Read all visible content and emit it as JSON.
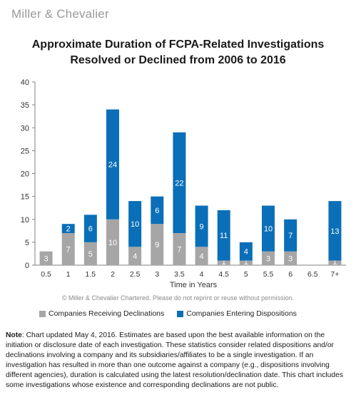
{
  "brand": "Miller & Chevalier",
  "title_line1": "Approximate Duration of FCPA-Related Investigations",
  "title_line2": "Resolved or Declined from 2006 to 2016",
  "copyright": "© Miller & Chevalier Chartered. Please do not reprint or reuse without permission.",
  "note_label": "Note",
  "note_text": ": Chart updated May 4, 2016. Estimates are based upon the best available information on the initiation or disclosure date of each investigation. These statistics consider related dispositions and/or declinations involving a company and its subsidiaries/affiliates to be a single investigation. If an investigation has resulted in more than one outcome against a company (e.g., dispositions involving different agencies), duration is calculated using the latest resolution/declination date. This chart includes some investigations whose existence and corresponding declinations are not public.",
  "colors": {
    "declinations": "#a6a6a6",
    "dispositions": "#0a6fb8"
  },
  "chart_data": {
    "type": "bar",
    "stacked": true,
    "title": "Approximate Duration of FCPA-Related Investigations Resolved or Declined from 2006 to 2016",
    "xlabel": "Time in Years",
    "ylabel": "",
    "ylim": [
      0,
      40
    ],
    "yticks": [
      0,
      5,
      10,
      15,
      20,
      25,
      30,
      35,
      40
    ],
    "grid": false,
    "legend": "bottom",
    "categories": [
      "0.5",
      "1",
      "1.5",
      "2",
      "2.5",
      "3",
      "3.5",
      "4",
      "4.5",
      "5",
      "5.5",
      "6",
      "6.5",
      "7+"
    ],
    "series": [
      {
        "name": "Companies Receiving Declinations",
        "values": [
          3,
          7,
          5,
          10,
          4,
          9,
          7,
          4,
          1,
          1,
          3,
          3,
          0,
          1
        ]
      },
      {
        "name": "Companies Entering Dispositions",
        "values": [
          0,
          2,
          6,
          24,
          10,
          6,
          22,
          9,
          11,
          4,
          10,
          7,
          0,
          13
        ]
      }
    ]
  }
}
